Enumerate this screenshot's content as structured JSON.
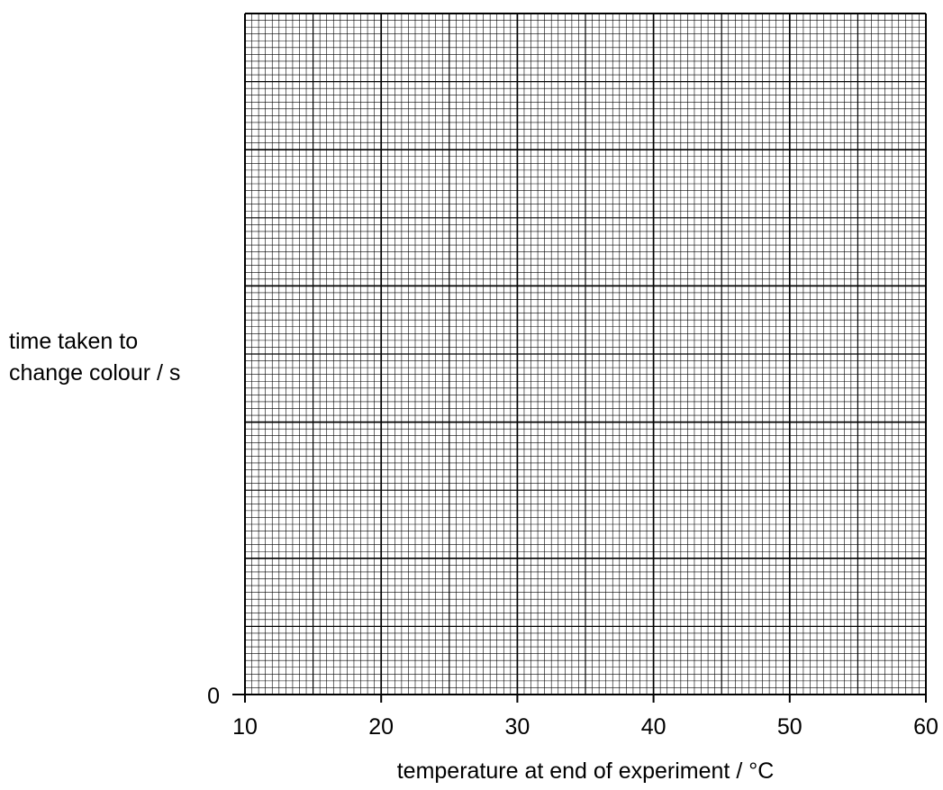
{
  "chart_data": {
    "type": "scatter",
    "title": "",
    "xlabel": "temperature at end of experiment / °C",
    "ylabel_lines": [
      "time taken to",
      "change colour / s"
    ],
    "xlim": [
      10,
      60
    ],
    "x_ticks": [
      10,
      20,
      30,
      40,
      50,
      60
    ],
    "x_tick_labels": [
      "10",
      "20",
      "30",
      "40",
      "50",
      "60"
    ],
    "y_tick_labels": [
      "0"
    ],
    "grid": true,
    "series": []
  }
}
